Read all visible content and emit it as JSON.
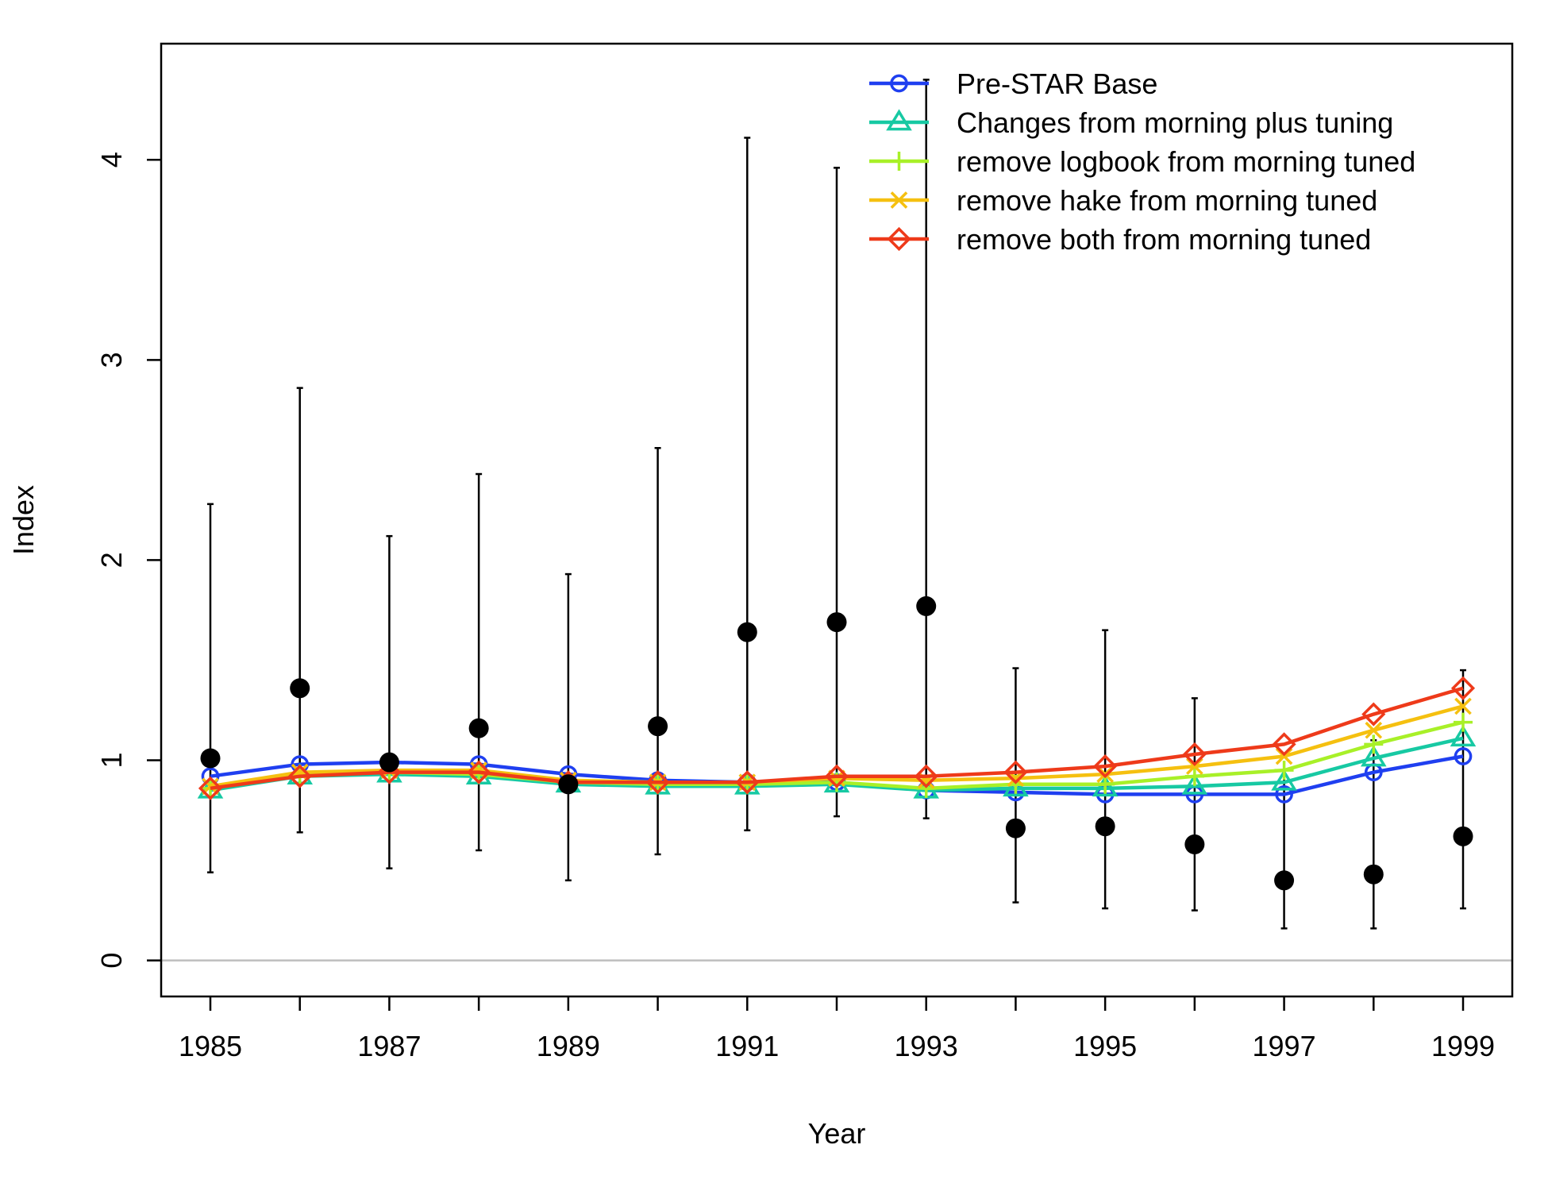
{
  "chart_data": {
    "type": "line",
    "xlabel": "Year",
    "ylabel": "Index",
    "xlim": [
      1984.45,
      1999.55
    ],
    "ylim": [
      -0.18,
      4.58
    ],
    "x_ticks": [
      "1985",
      "1987",
      "1989",
      "1991",
      "1993",
      "1995",
      "1997",
      "1999"
    ],
    "y_ticks": [
      "0",
      "1",
      "2",
      "3",
      "4"
    ],
    "years": [
      1985,
      1986,
      1987,
      1988,
      1989,
      1990,
      1991,
      1992,
      1993,
      1994,
      1995,
      1996,
      1997,
      1998,
      1999
    ],
    "reference_line": {
      "y": 0,
      "color": "#bebebe"
    },
    "observed": {
      "color": "#000000",
      "values": [
        1.01,
        1.36,
        0.99,
        1.16,
        0.88,
        1.17,
        1.64,
        1.69,
        1.77,
        0.66,
        0.67,
        0.58,
        0.4,
        0.43,
        0.62
      ],
      "lower": [
        0.44,
        0.64,
        0.46,
        0.55,
        0.4,
        0.53,
        0.65,
        0.72,
        0.71,
        0.29,
        0.26,
        0.25,
        0.16,
        0.16,
        0.26
      ],
      "upper": [
        2.28,
        2.86,
        2.12,
        2.43,
        1.93,
        2.56,
        4.11,
        3.96,
        4.4,
        1.46,
        1.65,
        1.31,
        0.95,
        1.1,
        1.45
      ]
    },
    "series": [
      {
        "name": "Pre-STAR Base",
        "color": "#1f3ff0",
        "marker": "circle",
        "values": [
          0.92,
          0.98,
          0.99,
          0.98,
          0.93,
          0.9,
          0.89,
          0.89,
          0.85,
          0.84,
          0.83,
          0.83,
          0.83,
          0.94,
          1.02
        ]
      },
      {
        "name": "Changes from morning plus tuning",
        "color": "#17c9a3",
        "marker": "triangle",
        "values": [
          0.85,
          0.92,
          0.93,
          0.92,
          0.88,
          0.87,
          0.87,
          0.88,
          0.85,
          0.86,
          0.86,
          0.87,
          0.89,
          1.01,
          1.11
        ]
      },
      {
        "name": "remove logbook from morning tuned",
        "color": "#a8f028",
        "marker": "plus",
        "values": [
          0.86,
          0.93,
          0.94,
          0.93,
          0.89,
          0.88,
          0.88,
          0.89,
          0.86,
          0.88,
          0.88,
          0.92,
          0.95,
          1.08,
          1.19
        ]
      },
      {
        "name": "remove hake from morning tuned",
        "color": "#f5c010",
        "marker": "cross",
        "values": [
          0.87,
          0.94,
          0.95,
          0.95,
          0.9,
          0.89,
          0.89,
          0.91,
          0.9,
          0.91,
          0.93,
          0.97,
          1.02,
          1.15,
          1.27
        ]
      },
      {
        "name": "remove both from morning tuned",
        "color": "#ee3a1a",
        "marker": "diamond",
        "values": [
          0.86,
          0.92,
          0.94,
          0.94,
          0.89,
          0.89,
          0.89,
          0.92,
          0.92,
          0.94,
          0.97,
          1.03,
          1.08,
          1.23,
          1.36
        ]
      }
    ],
    "legend": {
      "position": "top-right",
      "box": false
    },
    "grid": false
  }
}
